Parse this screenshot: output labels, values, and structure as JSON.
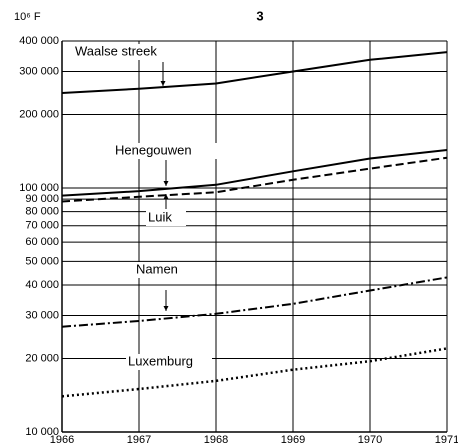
{
  "chart_data": {
    "type": "line",
    "title": "3",
    "y_label": "10⁶ F",
    "x": [
      1966,
      1967,
      1968,
      1969,
      1970,
      1971
    ],
    "xlim": [
      1966,
      1971
    ],
    "xticks": [
      1966,
      1967,
      1968,
      1969,
      1970,
      1971
    ],
    "log_y": true,
    "grid": true,
    "ylim": [
      10000,
      400000
    ],
    "yticks": [
      {
        "value": 10000,
        "label": "10 000"
      },
      {
        "value": 20000,
        "label": "20 000"
      },
      {
        "value": 30000,
        "label": "30 000"
      },
      {
        "value": 40000,
        "label": "40 000"
      },
      {
        "value": 50000,
        "label": "50 000"
      },
      {
        "value": 60000,
        "label": "60 000"
      },
      {
        "value": 70000,
        "label": "70 000"
      },
      {
        "value": 80000,
        "label": "80 000"
      },
      {
        "value": 90000,
        "label": "90 000"
      },
      {
        "value": 100000,
        "label": "100 000"
      },
      {
        "value": 200000,
        "label": "200 000"
      },
      {
        "value": 300000,
        "label": "300 000"
      },
      {
        "value": 400000,
        "label": "400 000"
      }
    ],
    "series": [
      {
        "name": "Waalse streek",
        "color": "#000000",
        "style": "solid",
        "values": [
          245000,
          255000,
          268000,
          300000,
          335000,
          360000
        ]
      },
      {
        "name": "Henegouwen",
        "color": "#000000",
        "style": "solid",
        "values": [
          93000,
          97000,
          103000,
          117000,
          132000,
          143000
        ]
      },
      {
        "name": "Luik",
        "color": "#000000",
        "style": "dashed",
        "values": [
          88000,
          92000,
          96000,
          108000,
          120000,
          133000
        ]
      },
      {
        "name": "Namen",
        "color": "#000000",
        "style": "dashdot",
        "values": [
          27000,
          28500,
          30500,
          33500,
          38000,
          43000
        ]
      },
      {
        "name": "Luxemburg",
        "color": "#000000",
        "style": "dotted",
        "values": [
          14000,
          15000,
          16200,
          18000,
          19500,
          22000
        ]
      }
    ]
  }
}
